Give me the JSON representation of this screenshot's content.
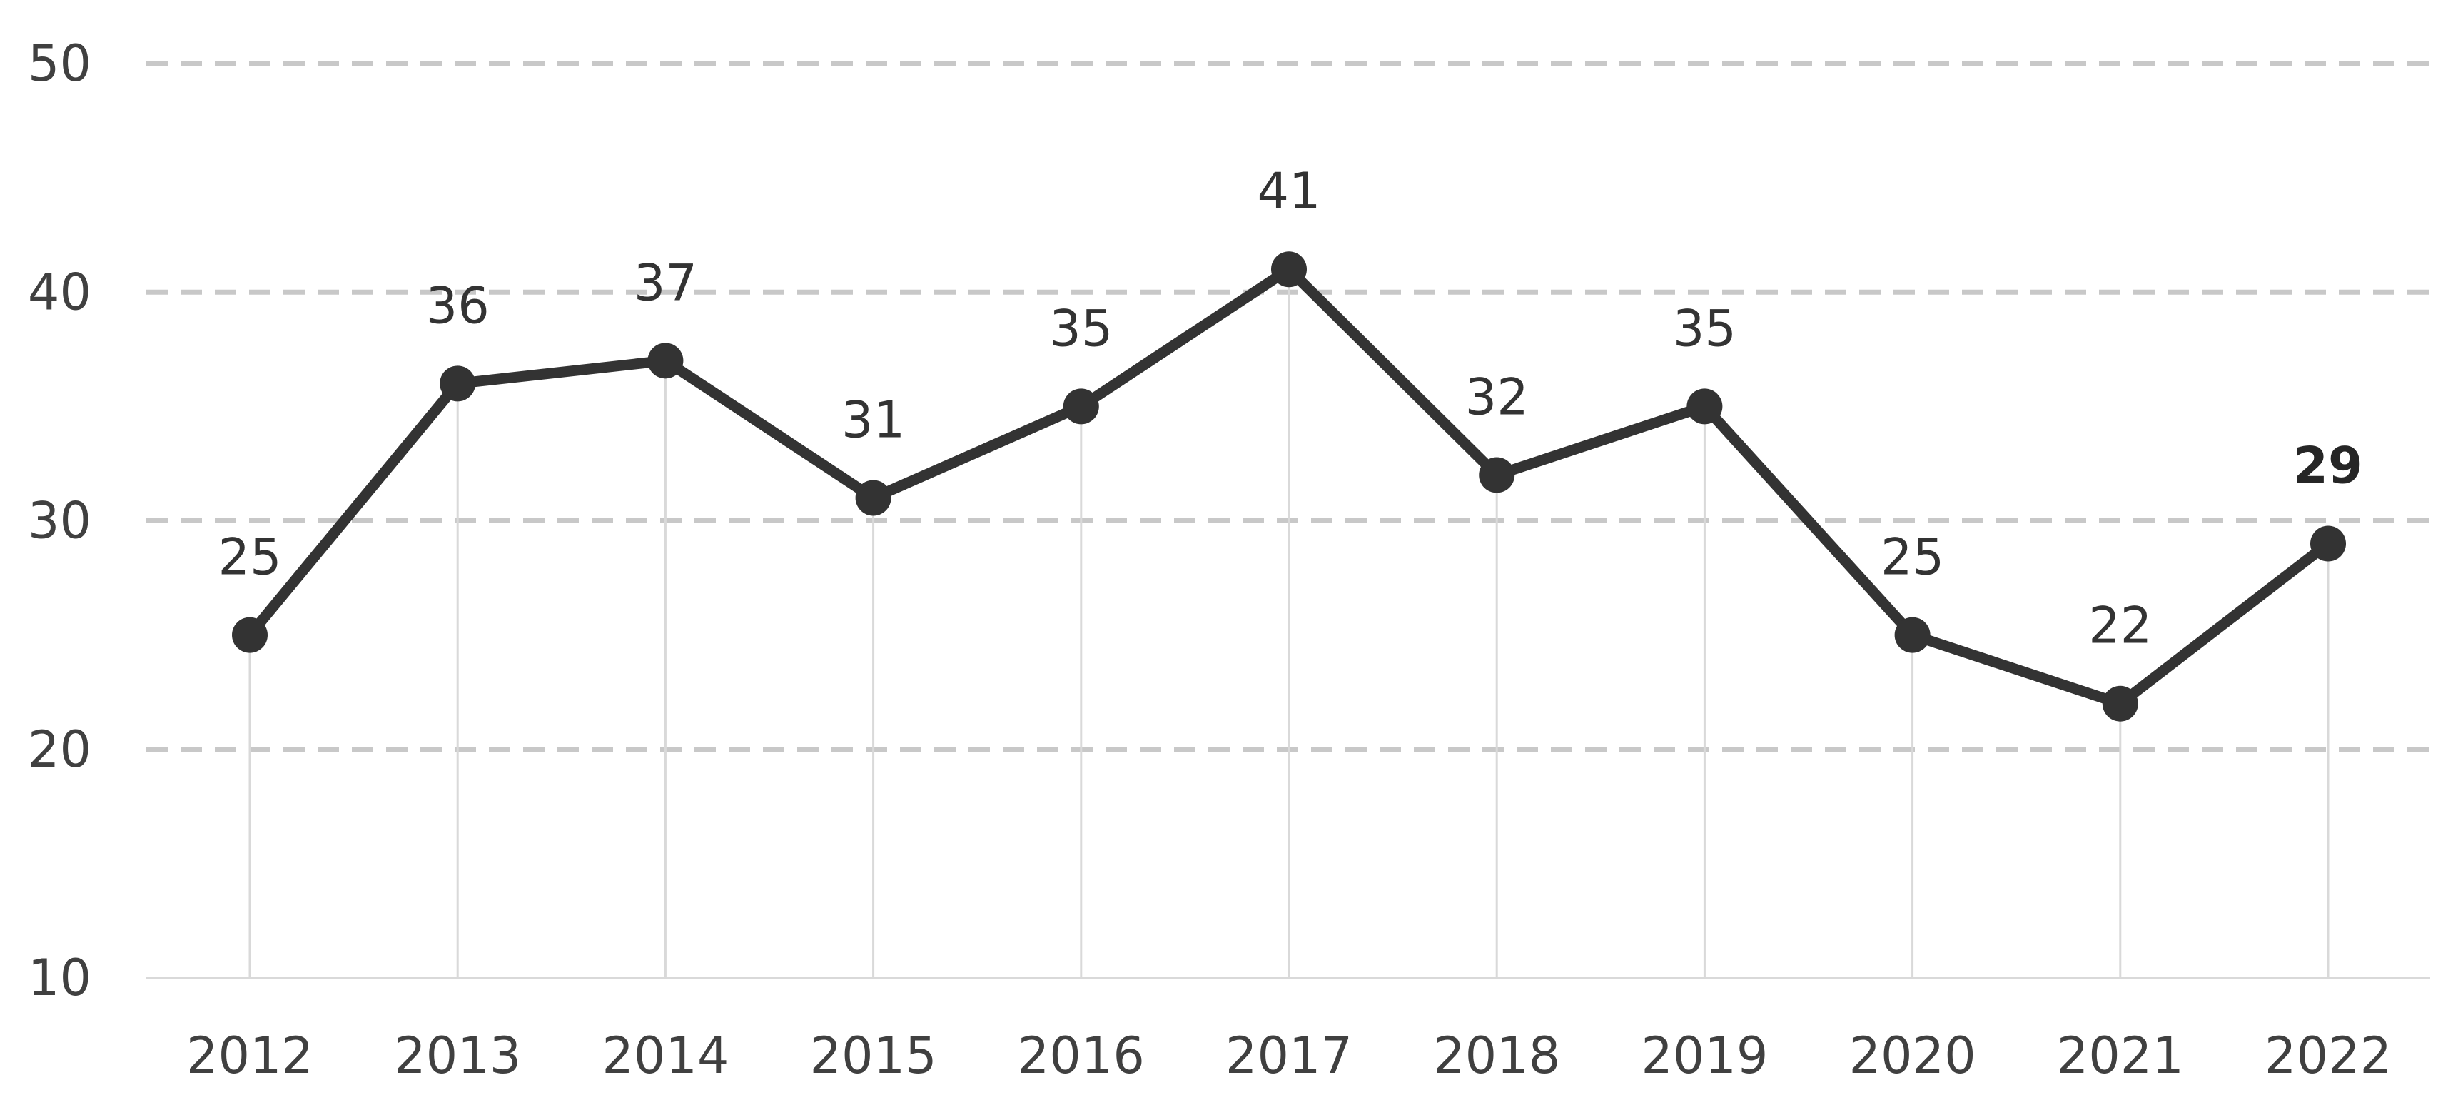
{
  "chart_data": {
    "type": "line",
    "title": "",
    "xlabel": "",
    "ylabel": "",
    "categories": [
      "2012",
      "2013",
      "2014",
      "2015",
      "2016",
      "2017",
      "2018",
      "2019",
      "2020",
      "2021",
      "2022"
    ],
    "series": [
      {
        "values": [
          25,
          36,
          37,
          31,
          35,
          41,
          32,
          35,
          25,
          22,
          29
        ],
        "color": "#333333",
        "marker": "circle"
      }
    ],
    "data_labels": [
      "25",
      "36",
      "37",
      "31",
      "35",
      "41",
      "32",
      "35",
      "25",
      "22",
      "29"
    ],
    "emphasized_label": "29",
    "ylim": [
      10,
      50
    ],
    "y_ticks": [
      "10",
      "20",
      "30",
      "40",
      "50"
    ],
    "grid": {
      "horizontal": "dashed",
      "vertical_drop_lines": true
    },
    "legend": "none",
    "colors": {
      "line": "#333333",
      "grid": "#c8c8c8",
      "drop_line": "#d9d9d9",
      "axis_text": "#404040"
    }
  }
}
